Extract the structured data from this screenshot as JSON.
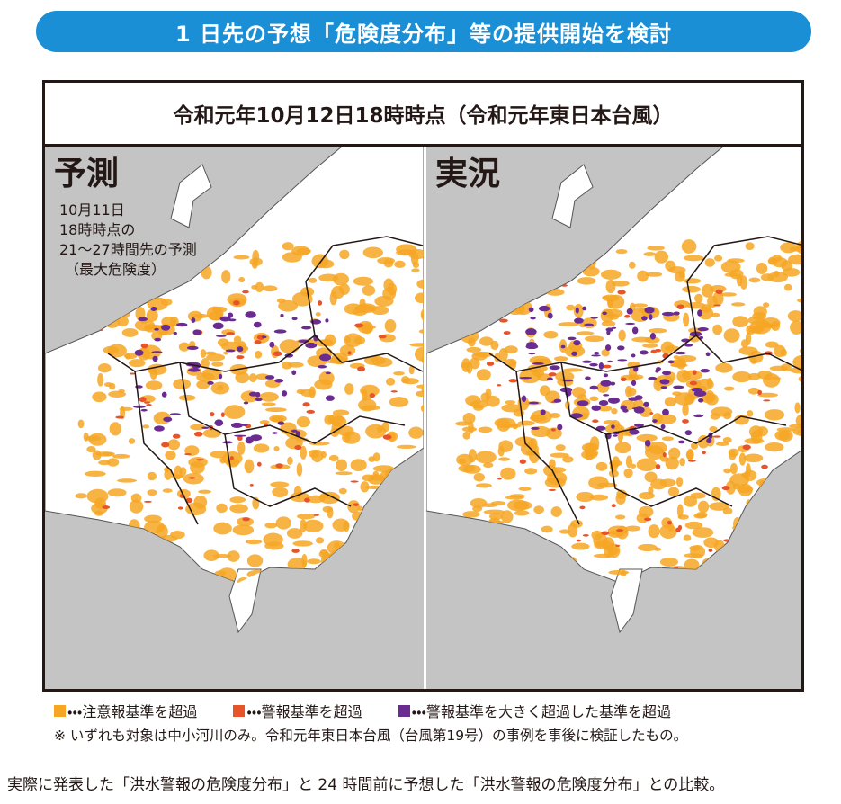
{
  "header": {
    "title": "1 日先の予想「危険度分布」等の提供開始を検討"
  },
  "figure": {
    "title": "令和元年10月12日18時時点（令和元年東日本台風）",
    "panels": [
      {
        "label": "予測",
        "note": [
          "10月11日",
          "18時時点の",
          "21～27時間先の予測",
          "（最大危険度）"
        ]
      },
      {
        "label": "実況"
      }
    ]
  },
  "legend": [
    {
      "color": "#f6a623",
      "label": "・・・注意報基準を超過"
    },
    {
      "color": "#e8542a",
      "label": "・・・警報基準を超過"
    },
    {
      "color": "#6b2c91",
      "label": "・・・警報基準を大きく超過した基準を超過"
    }
  ],
  "note": "※ いずれも対象は中小河川のみ。令和元年東日本台風（台風第19号）の事例を事後に検証したもの。",
  "caption": "実際に発表した「洪水警報の危険度分布」と 24 時間前に予想した「洪水警報の危険度分布」との比較。"
}
